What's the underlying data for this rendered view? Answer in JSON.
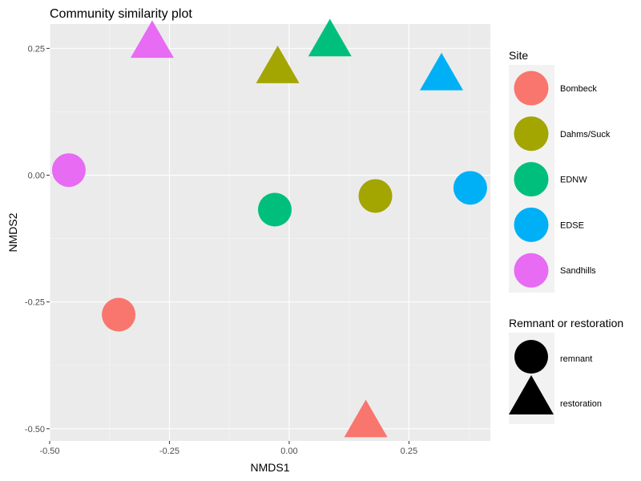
{
  "chart_data": {
    "type": "scatter",
    "title": "Community similarity plot",
    "xlabel": "NMDS1",
    "ylabel": "NMDS2",
    "xlim": [
      -0.5,
      0.42
    ],
    "ylim": [
      -0.524,
      0.298
    ],
    "xticks": [
      -0.5,
      -0.25,
      0.0,
      0.25
    ],
    "xtick_labels": [
      "-0.50",
      "-0.25",
      "0.00",
      "0.25"
    ],
    "yticks": [
      0.25,
      0.0,
      -0.25,
      -0.5
    ],
    "ytick_labels": [
      "0.25",
      "0.00",
      "-0.25",
      "-0.50"
    ],
    "grid": true,
    "legend_position": "right",
    "colors": {
      "Bombeck": "#F8766D",
      "Dahms/Suck": "#A3A500",
      "EDNW": "#00BF7D",
      "EDSE": "#00B0F6",
      "Sandhills": "#E76BF3"
    },
    "points": [
      {
        "site": "Sandhills",
        "type": "remnant",
        "x": -0.46,
        "y": 0.01
      },
      {
        "site": "Bombeck",
        "type": "remnant",
        "x": -0.356,
        "y": -0.275
      },
      {
        "site": "EDNW",
        "type": "remnant",
        "x": -0.03,
        "y": -0.068
      },
      {
        "site": "Dahms/Suck",
        "type": "remnant",
        "x": 0.18,
        "y": -0.041
      },
      {
        "site": "EDSE",
        "type": "remnant",
        "x": 0.378,
        "y": -0.025
      },
      {
        "site": "Sandhills",
        "type": "restoration",
        "x": -0.286,
        "y": 0.256
      },
      {
        "site": "EDNW",
        "type": "restoration",
        "x": 0.085,
        "y": 0.259
      },
      {
        "site": "Dahms/Suck",
        "type": "restoration",
        "x": -0.024,
        "y": 0.206
      },
      {
        "site": "EDSE",
        "type": "restoration",
        "x": 0.318,
        "y": 0.192
      },
      {
        "site": "Bombeck",
        "type": "restoration",
        "x": 0.16,
        "y": -0.492
      }
    ],
    "legend_site": {
      "title": "Site",
      "entries": [
        "Bombeck",
        "Dahms/Suck",
        "EDNW",
        "EDSE",
        "Sandhills"
      ]
    },
    "legend_shape": {
      "title": "Remnant or restoration",
      "entries": [
        "remnant",
        "restoration"
      ]
    }
  }
}
